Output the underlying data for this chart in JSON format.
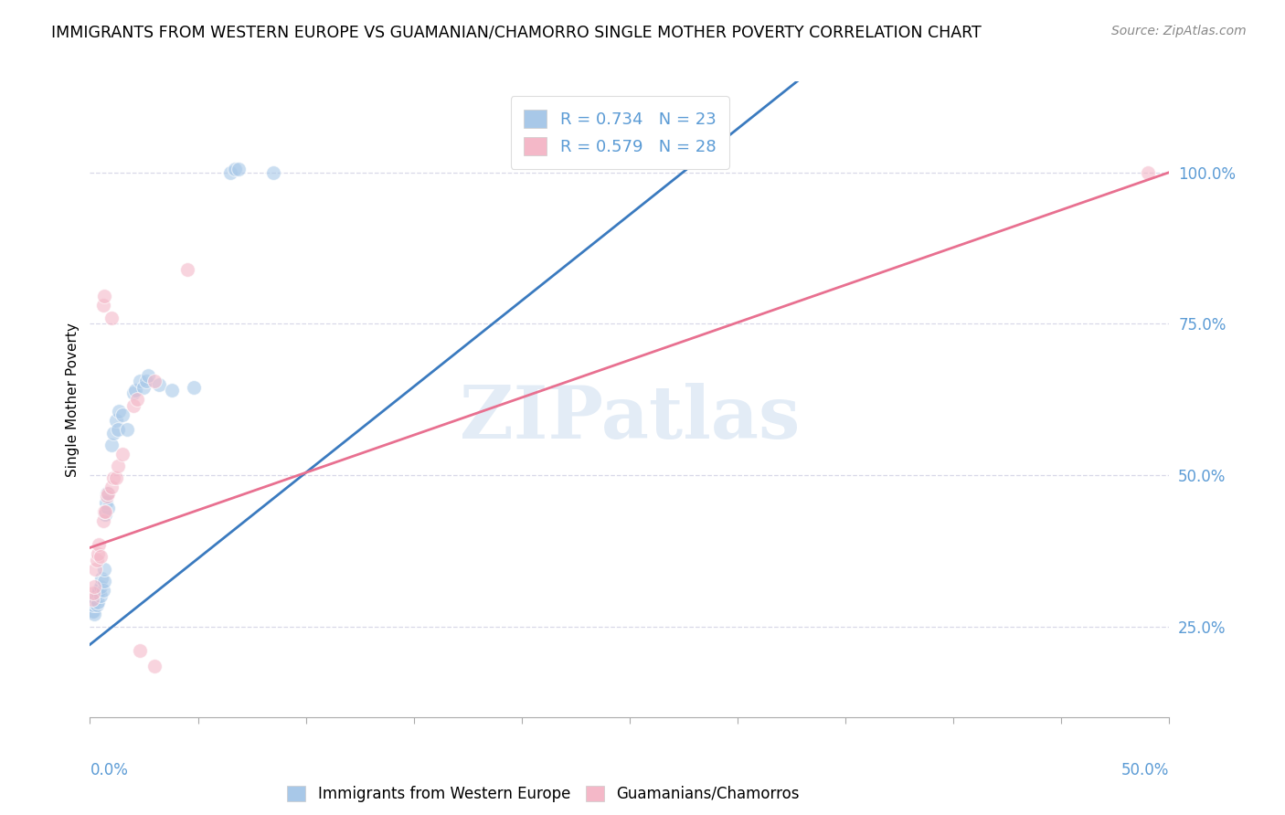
{
  "title": "IMMIGRANTS FROM WESTERN EUROPE VS GUAMANIAN/CHAMORRO SINGLE MOTHER POVERTY CORRELATION CHART",
  "source": "Source: ZipAtlas.com",
  "ylabel": "Single Mother Poverty",
  "right_yticks": [
    "25.0%",
    "50.0%",
    "75.0%",
    "100.0%"
  ],
  "right_ytick_vals": [
    25.0,
    50.0,
    75.0,
    100.0
  ],
  "watermark": "ZIPatlas",
  "blue_color": "#a8c8e8",
  "pink_color": "#f4b8c8",
  "line_blue": "#3a7abf",
  "line_pink": "#e87090",
  "blue_scatter": [
    [
      0.1,
      27.5
    ],
    [
      0.15,
      27.5
    ],
    [
      0.2,
      27.0
    ],
    [
      0.1,
      29.0
    ],
    [
      0.15,
      28.5
    ],
    [
      0.2,
      29.0
    ],
    [
      0.25,
      29.5
    ],
    [
      0.3,
      30.0
    ],
    [
      0.3,
      28.5
    ],
    [
      0.35,
      29.0
    ],
    [
      0.35,
      30.5
    ],
    [
      0.4,
      31.0
    ],
    [
      0.5,
      30.0
    ],
    [
      0.5,
      31.5
    ],
    [
      0.55,
      33.0
    ],
    [
      0.6,
      31.0
    ],
    [
      0.65,
      32.5
    ],
    [
      0.65,
      34.5
    ],
    [
      0.7,
      43.5
    ],
    [
      0.75,
      45.5
    ],
    [
      0.8,
      47.0
    ],
    [
      0.85,
      44.5
    ],
    [
      1.0,
      55.0
    ],
    [
      1.1,
      57.0
    ],
    [
      1.2,
      59.0
    ],
    [
      1.3,
      57.5
    ],
    [
      1.35,
      60.5
    ],
    [
      1.5,
      60.0
    ],
    [
      1.7,
      57.5
    ],
    [
      2.0,
      63.5
    ],
    [
      2.1,
      64.0
    ],
    [
      2.3,
      65.5
    ],
    [
      2.5,
      64.5
    ],
    [
      2.6,
      65.5
    ],
    [
      2.7,
      66.5
    ],
    [
      3.2,
      65.0
    ],
    [
      3.8,
      64.0
    ],
    [
      4.8,
      64.5
    ],
    [
      6.5,
      100.0
    ],
    [
      6.7,
      100.5
    ],
    [
      6.9,
      100.5
    ],
    [
      8.5,
      100.0
    ]
  ],
  "pink_scatter": [
    [
      0.1,
      29.5
    ],
    [
      0.15,
      30.5
    ],
    [
      0.2,
      31.5
    ],
    [
      0.25,
      34.5
    ],
    [
      0.3,
      36.0
    ],
    [
      0.35,
      37.0
    ],
    [
      0.4,
      38.5
    ],
    [
      0.5,
      36.5
    ],
    [
      0.6,
      42.5
    ],
    [
      0.65,
      44.0
    ],
    [
      0.7,
      44.0
    ],
    [
      0.8,
      46.5
    ],
    [
      0.85,
      47.0
    ],
    [
      1.0,
      48.0
    ],
    [
      1.1,
      49.5
    ],
    [
      1.2,
      49.5
    ],
    [
      1.3,
      51.5
    ],
    [
      1.5,
      53.5
    ],
    [
      2.0,
      61.5
    ],
    [
      2.2,
      62.5
    ],
    [
      3.0,
      65.5
    ],
    [
      2.3,
      21.0
    ],
    [
      3.0,
      18.5
    ],
    [
      4.5,
      84.0
    ],
    [
      1.0,
      76.0
    ],
    [
      0.6,
      78.0
    ],
    [
      0.65,
      79.5
    ],
    [
      49.0,
      100.0
    ]
  ],
  "xlim": [
    0,
    50.0
  ],
  "ylim": [
    10.0,
    115.0
  ],
  "blue_line_x": [
    0.0,
    50.0
  ],
  "blue_line_y": [
    22.0,
    164.0
  ],
  "pink_line_x": [
    0.0,
    50.0
  ],
  "pink_line_y": [
    38.0,
    100.0
  ],
  "xtick_positions": [
    0,
    5,
    10,
    15,
    20,
    25,
    30,
    35,
    40,
    45,
    50
  ],
  "label_color": "#5b9bd5",
  "grid_color": "#d8d8e8"
}
